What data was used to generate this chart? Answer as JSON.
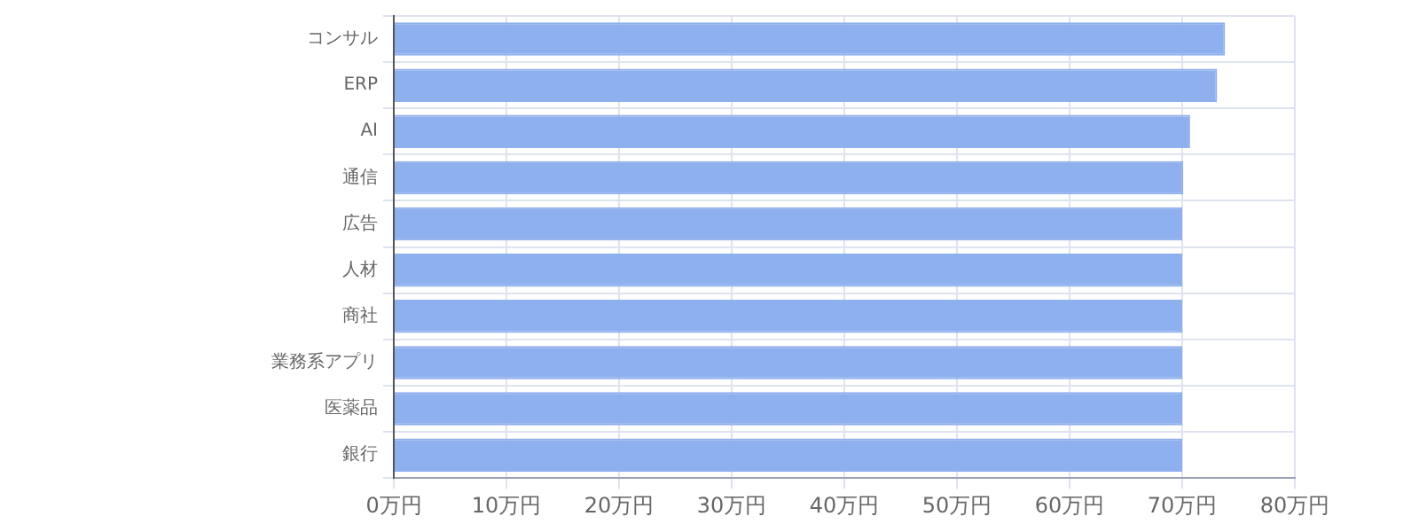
{
  "chart_data": {
    "type": "bar",
    "orientation": "horizontal",
    "categories": [
      "コンサル",
      "ERP",
      "AI",
      "通信",
      "広告",
      "人材",
      "商社",
      "業務系アプリ",
      "医薬品",
      "銀行"
    ],
    "values": [
      73.8,
      73.1,
      70.7,
      70.1,
      70,
      70,
      70,
      70,
      70,
      70
    ],
    "color": "#8fb0ee",
    "xlim": [
      0,
      80
    ],
    "xticks": [
      {
        "value": 0,
        "label": "0万円"
      },
      {
        "value": 10,
        "label": "10万円"
      },
      {
        "value": 20,
        "label": "20万円"
      },
      {
        "value": 30,
        "label": "30万円"
      },
      {
        "value": 40,
        "label": "40万円"
      },
      {
        "value": 50,
        "label": "50万円"
      },
      {
        "value": 60,
        "label": "60万円"
      },
      {
        "value": 70,
        "label": "70万円"
      },
      {
        "value": 80,
        "label": "80万円"
      }
    ],
    "grid": true,
    "legend": false
  }
}
